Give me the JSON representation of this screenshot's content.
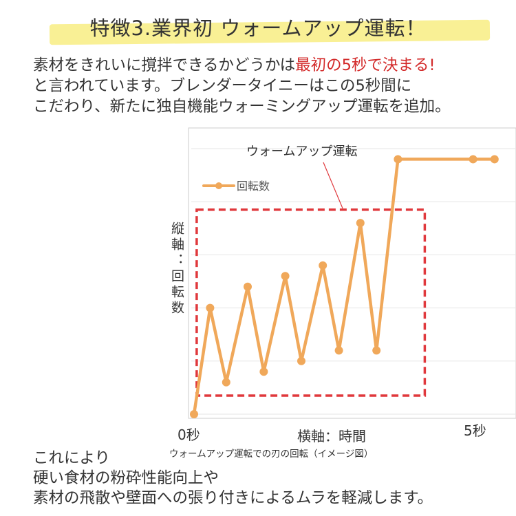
{
  "header": {
    "title": "特徴3.業界初 ウォームアップ運転！"
  },
  "intro": {
    "line1_pre": "素材をきれいに撹拌できるかどうかは",
    "line1_emph": "最初の5秒で決まる!",
    "line2": "と言われています。ブレンダータイニーはこの5秒間に",
    "line3": "こだわり、新たに独自機能ウォーミングアップ運転を追加。"
  },
  "chart_data": {
    "type": "line",
    "annotation": "ウォームアップ運転",
    "ylabel": "縦軸：回転数",
    "xlabel": "横軸：時間",
    "x_start_label": "0秒",
    "x_end_label": "5秒",
    "caption": "ウォームアップ運転での刃の回転（イメージ図）",
    "grid": true,
    "legend_position": "top-left",
    "ylim": [
      0,
      100
    ],
    "xlim": [
      0,
      6
    ],
    "series": [
      {
        "name": "回転数",
        "x": [
          0,
          0.3,
          0.6,
          1.0,
          1.3,
          1.7,
          2.0,
          2.4,
          2.7,
          3.1,
          3.4,
          3.8,
          5.2,
          5.6
        ],
        "values": [
          0,
          40,
          12,
          48,
          16,
          52,
          20,
          56,
          24,
          72,
          24,
          96,
          96,
          96
        ]
      }
    ],
    "colors": {
      "line": "#f0a85a",
      "highlight_box": "#e0383c",
      "grid": "#e6e6e6"
    }
  },
  "outro": {
    "line1": "これにより",
    "line2": "硬い食材の粉砕性能向上や",
    "line3": "素材の飛散や壁面への張り付きによるムラを軽減します。"
  }
}
